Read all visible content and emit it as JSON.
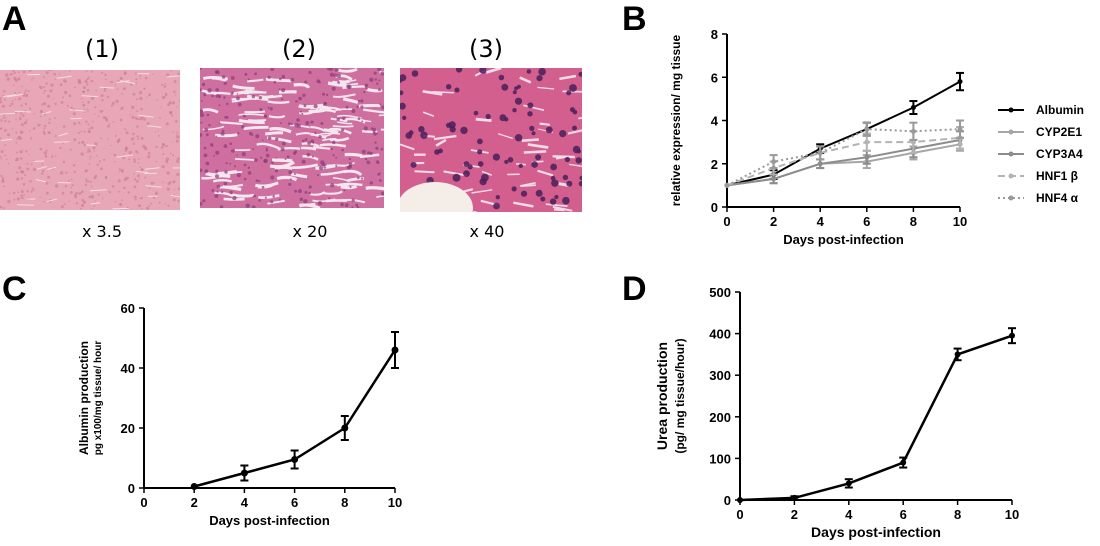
{
  "panels": {
    "A": {
      "letter": "A",
      "images": [
        {
          "label": "(1)",
          "magnification": "x 3.5"
        },
        {
          "label": "(2)",
          "magnification": "x 20"
        },
        {
          "label": "(3)",
          "magnification": "x 40"
        }
      ],
      "colors": {
        "stain_pink": "#e7a7b7",
        "stain_dark": "#8a3a78",
        "nucleus": "#4a1f5c"
      }
    },
    "B": {
      "letter": "B"
    },
    "C": {
      "letter": "C"
    },
    "D": {
      "letter": "D"
    }
  },
  "chart_data": [
    {
      "id": "B",
      "type": "line",
      "xlabel": "Days post-infection",
      "ylabel": "relative expression/ mg tissue",
      "x": [
        0,
        2,
        4,
        6,
        8,
        10
      ],
      "xlim": [
        0,
        10
      ],
      "ylim": [
        0,
        8
      ],
      "xticks": [
        "0",
        "2",
        "4",
        "6",
        "8",
        "10"
      ],
      "yticks": [
        "0",
        "2",
        "4",
        "6",
        "8"
      ],
      "legend_position": "right",
      "series": [
        {
          "name": "Albumin",
          "values": [
            1.0,
            1.5,
            2.7,
            3.6,
            4.6,
            5.8
          ],
          "err": [
            0,
            0.2,
            0.2,
            0.3,
            0.3,
            0.4
          ],
          "color": "#000000",
          "dash": "solid"
        },
        {
          "name": "CYP2E1",
          "values": [
            1.0,
            1.3,
            2.0,
            2.1,
            2.5,
            2.9
          ],
          "err": [
            0,
            0.2,
            0.2,
            0.3,
            0.3,
            0.3
          ],
          "color": "#a6a6a6",
          "dash": "solid"
        },
        {
          "name": "CYP3A4",
          "values": [
            1.0,
            1.3,
            2.0,
            2.3,
            2.7,
            3.1
          ],
          "err": [
            0,
            0.2,
            0.2,
            0.3,
            0.4,
            0.4
          ],
          "color": "#8c8c8c",
          "dash": "solid"
        },
        {
          "name": "HNF1 β",
          "values": [
            1.0,
            1.8,
            2.5,
            3.0,
            3.0,
            3.2
          ],
          "err": [
            0,
            0.3,
            0.3,
            0.4,
            0.5,
            0.5
          ],
          "color": "#b3b3b3",
          "dash": "dashed"
        },
        {
          "name": "HNF4 α",
          "values": [
            1.0,
            2.1,
            2.5,
            3.6,
            3.5,
            3.6
          ],
          "err": [
            0,
            0.3,
            0.3,
            0.3,
            0.4,
            0.4
          ],
          "color": "#999999",
          "dash": "dotted"
        }
      ]
    },
    {
      "id": "C",
      "type": "line",
      "xlabel": "Days post-infection",
      "ylabel": "Albumin production",
      "ylabel2": "pg x100/mg tissue/ hour",
      "x": [
        2,
        4,
        6,
        8,
        10
      ],
      "xlim": [
        0,
        10
      ],
      "ylim": [
        0,
        60
      ],
      "xticks": [
        "0",
        "2",
        "4",
        "6",
        "8",
        "10"
      ],
      "yticks": [
        "0",
        "20",
        "40",
        "60"
      ],
      "series": [
        {
          "values": [
            0.5,
            5,
            9.5,
            20,
            46
          ],
          "err": [
            0,
            2.5,
            3,
            4,
            6
          ],
          "color": "#000000"
        }
      ]
    },
    {
      "id": "D",
      "type": "line",
      "xlabel": "Days post-infection",
      "ylabel": "Urea production",
      "ylabel2": "(pg/ mg tissue/hour)",
      "x": [
        0,
        2,
        4,
        6,
        8,
        10
      ],
      "xlim": [
        0,
        10
      ],
      "ylim": [
        0,
        500
      ],
      "xticks": [
        "0",
        "2",
        "4",
        "6",
        "8",
        "10"
      ],
      "yticks": [
        "0",
        "100",
        "200",
        "300",
        "400",
        "500"
      ],
      "series": [
        {
          "values": [
            0,
            5,
            40,
            90,
            350,
            395
          ],
          "err": [
            0,
            4,
            10,
            12,
            14,
            18
          ],
          "color": "#000000"
        }
      ]
    }
  ]
}
